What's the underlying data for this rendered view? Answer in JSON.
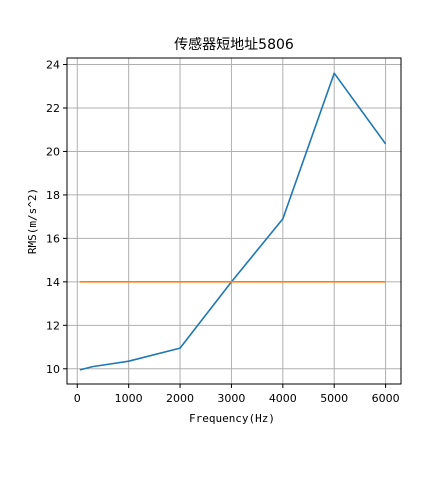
{
  "chart_data": {
    "type": "line",
    "title": "传感器短地址5806",
    "xlabel": "Frequency(Hz)",
    "ylabel": "RMS(m/s^2)",
    "xlim": [
      -200,
      6300
    ],
    "ylim": [
      9.3,
      24.3
    ],
    "xticks": [
      0,
      1000,
      2000,
      3000,
      4000,
      5000,
      6000
    ],
    "yticks": [
      10,
      12,
      14,
      16,
      18,
      20,
      22,
      24
    ],
    "grid": true,
    "series": [
      {
        "color": "#1f77b4",
        "x": [
          50,
          300,
          1000,
          2000,
          3000,
          4000,
          5000,
          6000
        ],
        "y": [
          9.95,
          10.1,
          10.35,
          10.95,
          14.0,
          16.9,
          23.6,
          20.35
        ]
      },
      {
        "color": "#ff7f0e",
        "x": [
          50,
          6000
        ],
        "y": [
          14.0,
          14.0
        ]
      }
    ]
  }
}
